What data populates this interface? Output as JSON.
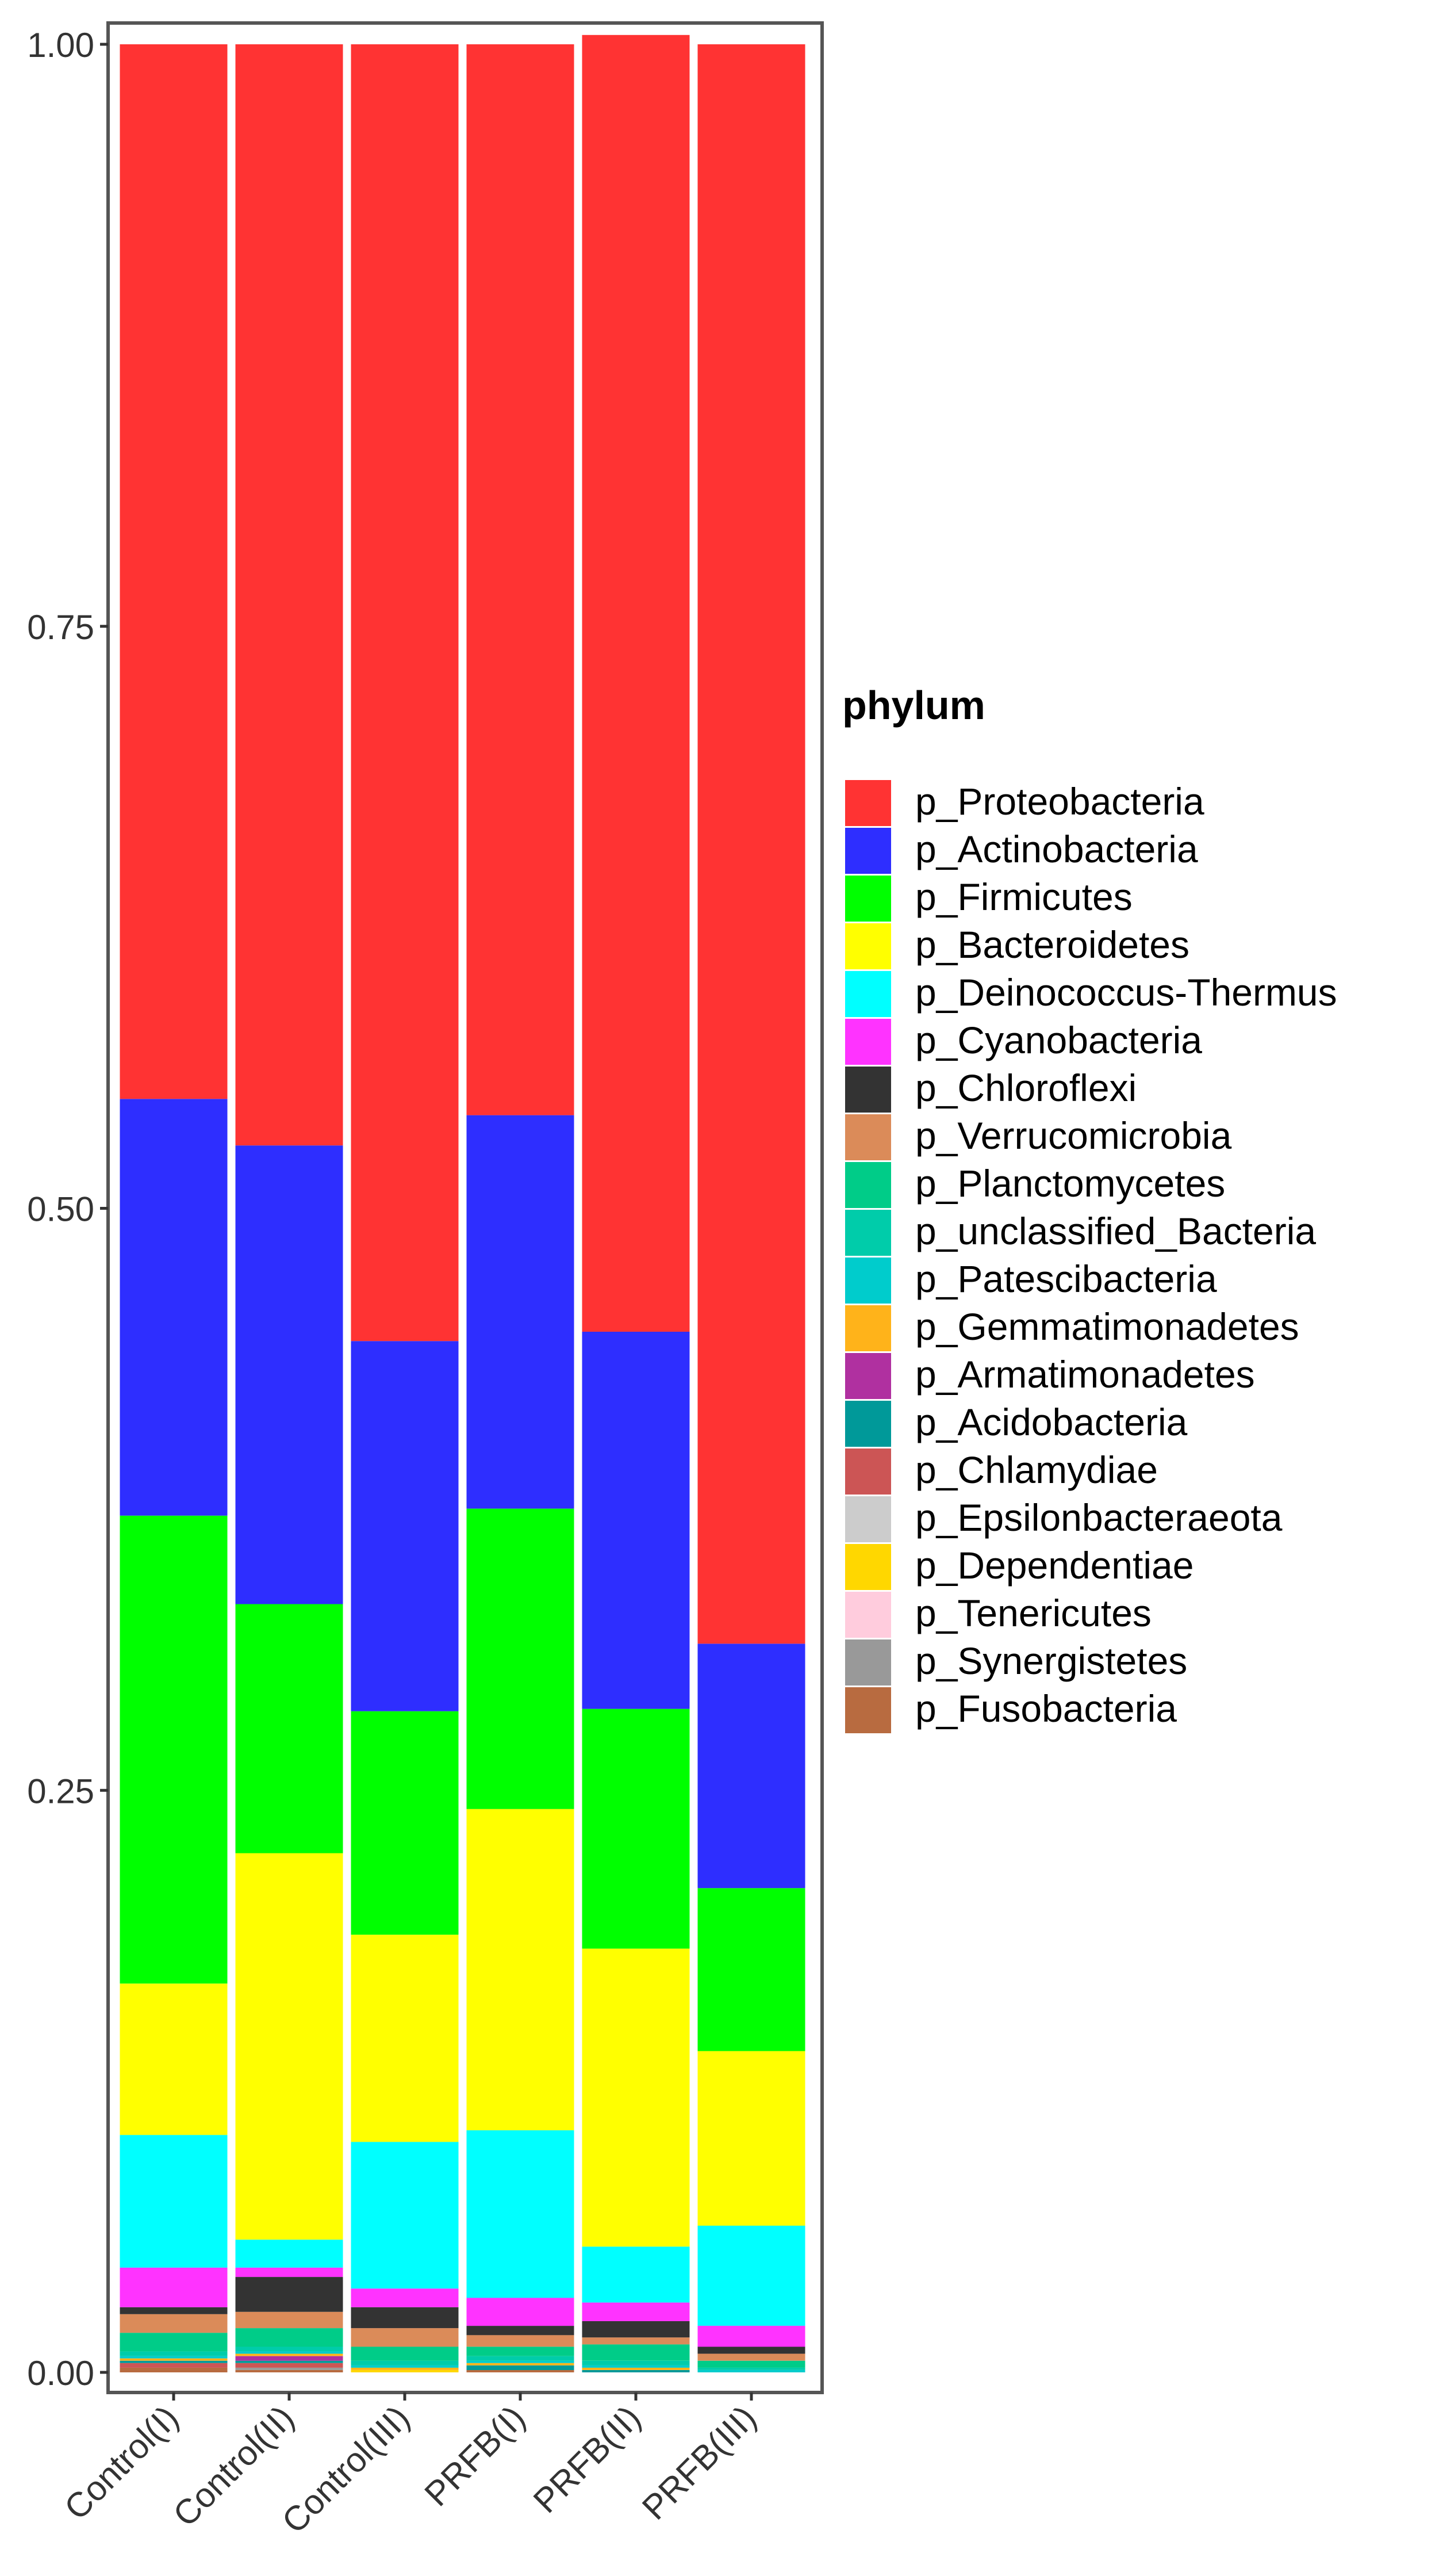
{
  "chart_data": {
    "type": "bar",
    "stacked": true,
    "title": "",
    "xlabel": "",
    "ylabel": "",
    "ylim": [
      0,
      1
    ],
    "y_ticks": [
      0,
      0.25,
      0.5,
      0.75,
      1
    ],
    "y_tick_labels": [
      "0.00",
      "0.25",
      "0.50",
      "0.75",
      "1.00"
    ],
    "categories": [
      "Control(I)",
      "Control(II)",
      "Control(III)",
      "PRFB(I)",
      "PRFB(II)",
      "PRFB(III)"
    ],
    "legend": {
      "title": "phylum",
      "position": "right"
    },
    "series": [
      {
        "name": "p_Proteobacteria",
        "color": "#FF3333",
        "values": [
          0.453,
          0.473,
          0.557,
          0.46,
          0.557,
          0.687
        ]
      },
      {
        "name": "p_Actinobacteria",
        "color": "#2E2EFF",
        "values": [
          0.179,
          0.197,
          0.159,
          0.169,
          0.162,
          0.105
        ]
      },
      {
        "name": "p_Firmicutes",
        "color": "#00FF00",
        "values": [
          0.201,
          0.107,
          0.096,
          0.129,
          0.103,
          0.07
        ]
      },
      {
        "name": "p_Bacteroidetes",
        "color": "#FFFF00",
        "values": [
          0.065,
          0.166,
          0.089,
          0.138,
          0.128,
          0.075
        ]
      },
      {
        "name": "p_Deinococcus-Thermus",
        "color": "#00FFFF",
        "values": [
          0.057,
          0.012,
          0.063,
          0.072,
          0.024,
          0.043
        ]
      },
      {
        "name": "p_Cyanobacteria",
        "color": "#FF33FF",
        "values": [
          0.017,
          0.004,
          0.008,
          0.012,
          0.008,
          0.009
        ]
      },
      {
        "name": "p_Chloroflexi",
        "color": "#333333",
        "values": [
          0.003,
          0.015,
          0.009,
          0.004,
          0.007,
          0.003
        ]
      },
      {
        "name": "p_Verrucomicrobia",
        "color": "#DB8B59",
        "values": [
          0.008,
          0.007,
          0.008,
          0.005,
          0.003,
          0.003
        ]
      },
      {
        "name": "p_Planctomycetes",
        "color": "#00CC88",
        "values": [
          0.008,
          0.008,
          0.006,
          0.004,
          0.007,
          0.003
        ]
      },
      {
        "name": "p_unclassified_Bacteria",
        "color": "#00CCAA",
        "values": [
          0.002,
          0.002,
          0.002,
          0.002,
          0.002,
          0.001
        ]
      },
      {
        "name": "p_Patescibacteria",
        "color": "#00CCCC",
        "values": [
          0.001,
          0.001,
          0.001,
          0.001,
          0.001,
          0.001
        ]
      },
      {
        "name": "p_Gemmatimonadetes",
        "color": "#FFB31A",
        "values": [
          0.001,
          0.001,
          0.001,
          0.001,
          0.001,
          0.0
        ]
      },
      {
        "name": "p_Armatimonadetes",
        "color": "#B030A0",
        "values": [
          0.0,
          0.002,
          0.0,
          0.0,
          0.0,
          0.0
        ]
      },
      {
        "name": "p_Acidobacteria",
        "color": "#009999",
        "values": [
          0.001,
          0.001,
          0.0,
          0.002,
          0.001,
          0.0
        ]
      },
      {
        "name": "p_Chlamydiae",
        "color": "#CC5555",
        "values": [
          0.002,
          0.002,
          0.0,
          0.0,
          0.0,
          0.0
        ]
      },
      {
        "name": "p_Epsilonbacteraeota",
        "color": "#CCCCCC",
        "values": [
          0.0,
          0.0,
          0.0,
          0.0,
          0.0,
          0.0
        ]
      },
      {
        "name": "p_Dependentiae",
        "color": "#FFD700",
        "values": [
          0.0,
          0.0,
          0.001,
          0.0,
          0.0,
          0.0
        ]
      },
      {
        "name": "p_Tenericutes",
        "color": "#FFCCDD",
        "values": [
          0.0,
          0.0,
          0.0,
          0.0,
          0.0,
          0.0
        ]
      },
      {
        "name": "p_Synergistetes",
        "color": "#999999",
        "values": [
          0.0,
          0.001,
          0.0,
          0.0,
          0.0,
          0.0
        ]
      },
      {
        "name": "p_Fusobacteria",
        "color": "#B86B40",
        "values": [
          0.002,
          0.001,
          0.0,
          0.001,
          0.0,
          0.0
        ]
      }
    ]
  }
}
